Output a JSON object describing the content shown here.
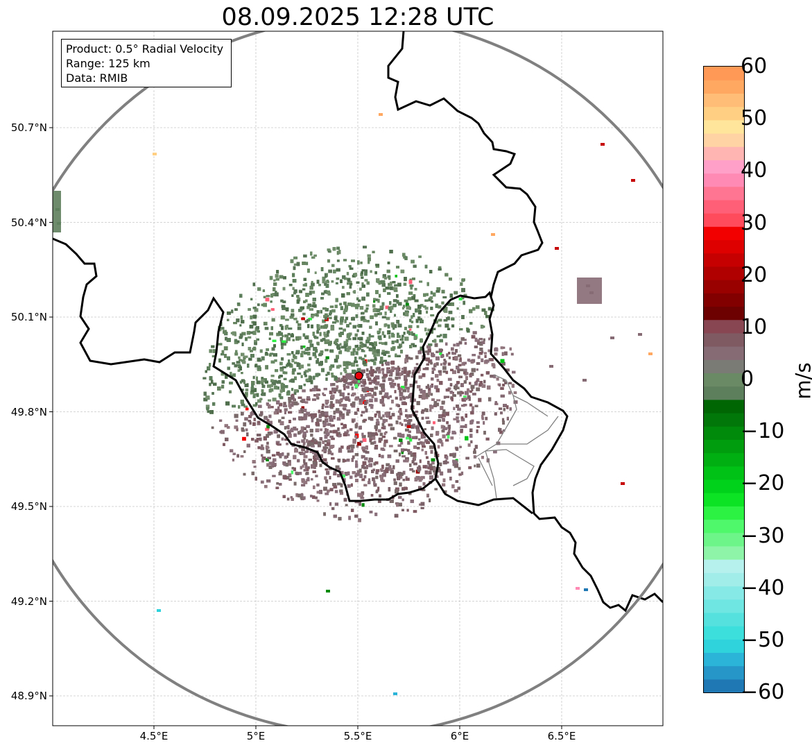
{
  "title": "08.09.2025 12:28 UTC",
  "info": {
    "product": "Product: 0.5° Radial Velocity",
    "range": "Range: 125 km",
    "data": "Data: RMIB"
  },
  "map": {
    "lon_range": [
      4.0,
      7.0
    ],
    "lat_range": [
      48.8,
      51.0
    ],
    "lat_ticks": [
      "50.7°N",
      "50.4°N",
      "50.1°N",
      "49.8°N",
      "49.5°N",
      "49.2°N",
      "48.9°N"
    ],
    "lat_values": [
      50.7,
      50.4,
      50.1,
      49.8,
      49.5,
      49.2,
      48.9
    ],
    "lon_ticks": [
      "4.5°E",
      "5°E",
      "5.5°E",
      "6°E",
      "6.5°E"
    ],
    "lon_values": [
      4.5,
      5.0,
      5.5,
      6.0,
      6.5
    ],
    "radar_site": {
      "lon": 5.505,
      "lat": 49.914
    },
    "range_ring_color": "#808080",
    "border_color": "#000000",
    "subborder_color": "#808080",
    "gridlines": true
  },
  "colorbar": {
    "unit": "m/s",
    "min": -60,
    "max": 60,
    "ticks": [
      "60",
      "50",
      "40",
      "30",
      "20",
      "10",
      "0",
      "−10",
      "−20",
      "−30",
      "−40",
      "−50",
      "−60"
    ],
    "tick_values": [
      60,
      50,
      40,
      30,
      20,
      10,
      0,
      -10,
      -20,
      -30,
      -40,
      -50,
      -60
    ],
    "colors": [
      "#1f78b4",
      "#2596c7",
      "#2bb4d8",
      "#2fd3dc",
      "#3ddfdc",
      "#55e2de",
      "#6fe6e2",
      "#87e9e6",
      "#a0ede9",
      "#b7f1ee",
      "#8ef5a8",
      "#6ef58a",
      "#4ff86a",
      "#2cf244",
      "#0de325",
      "#00d21b",
      "#00c116",
      "#00b012",
      "#009d0f",
      "#008a0c",
      "#007708",
      "#006604",
      "#5e7f5c",
      "#6a8a66",
      "#7b7b76",
      "#866a74",
      "#7f5a63",
      "#884652",
      "#6d0000",
      "#820000",
      "#990000",
      "#b00000",
      "#c60000",
      "#de0000",
      "#f20000",
      "#ff4b5c",
      "#ff6077",
      "#ff7592",
      "#ff8bb5",
      "#ffa0c8",
      "#ffb6b3",
      "#ffd3a3",
      "#ffe59c",
      "#ffd083",
      "#ffbd77",
      "#ffa862",
      "#ff9955"
    ]
  }
}
